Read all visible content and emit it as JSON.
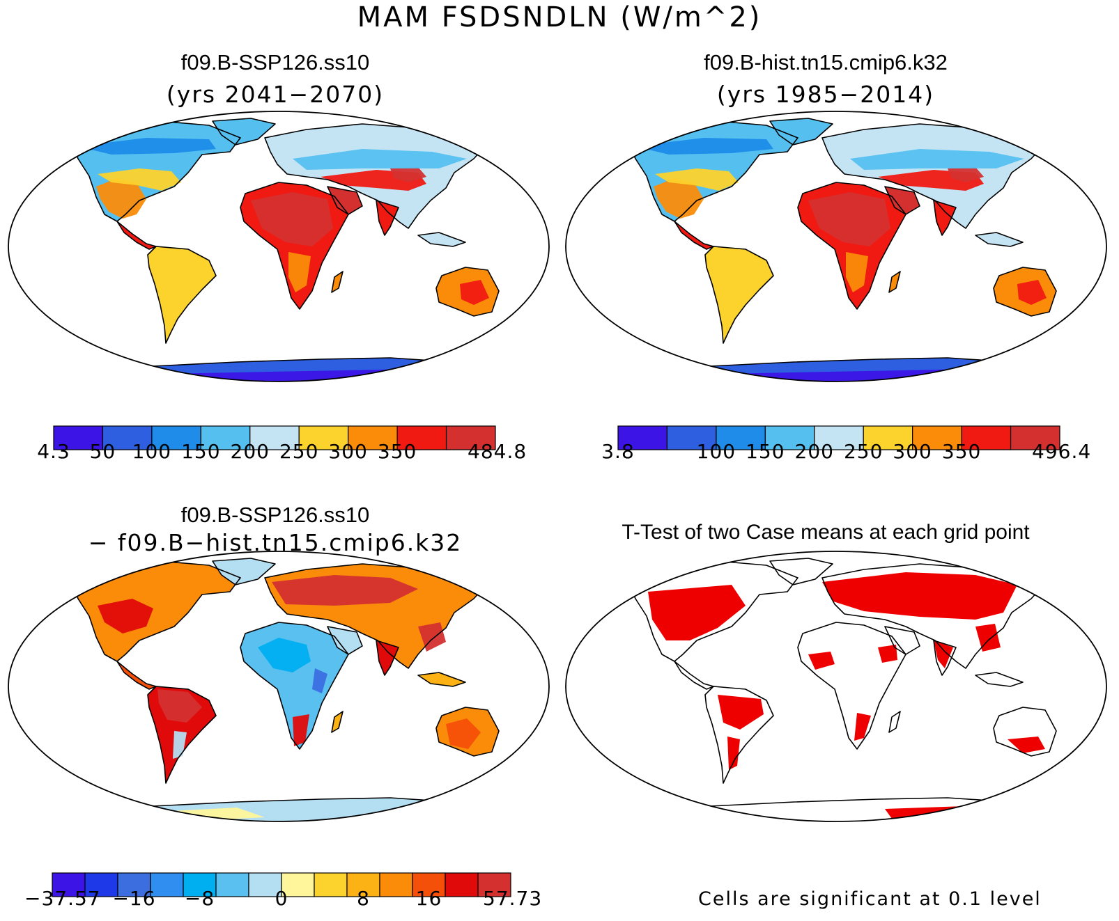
{
  "figure": {
    "title": "MAM FSDSNDLN (W/m^2)"
  },
  "panels": {
    "case1": {
      "title": "f09.B-SSP126.ss10",
      "subtitle": "(yrs 2041−2070)",
      "colorbar": {
        "colors": [
          "#3d14e6",
          "#2d5fe0",
          "#1e8ce8",
          "#55c0f0",
          "#c4e4f4",
          "#fcd22c",
          "#fa8c0a",
          "#f01a12",
          "#d43030"
        ],
        "labels": [
          "4.3",
          "50",
          "100",
          "150",
          "200",
          "250",
          "300",
          "350",
          "484.8"
        ]
      }
    },
    "case2": {
      "title": "f09.B-hist.tn15.cmip6.k32",
      "subtitle": "(yrs 1985−2014)",
      "colorbar": {
        "colors": [
          "#3d14e6",
          "#2d5fe0",
          "#1e8ce8",
          "#55c0f0",
          "#c4e4f4",
          "#fcd22c",
          "#fa8c0a",
          "#f01a12",
          "#d43030"
        ],
        "labels": [
          "3.8",
          "100",
          "150",
          "200",
          "250",
          "300",
          "350",
          "496.4"
        ]
      }
    },
    "diff": {
      "title": "f09.B-SSP126.ss10",
      "subtitle": "− f09.B−hist.tn15.cmip6.k32",
      "colorbar": {
        "colors": [
          "#3d14e6",
          "#1e3ae8",
          "#3c6ee0",
          "#2f8ef0",
          "#00aff0",
          "#5ac0f0",
          "#b4def2",
          "#fff59a",
          "#fcd22c",
          "#fcb214",
          "#fa8c0a",
          "#f5500a",
          "#e00a0a",
          "#d43030"
        ],
        "labels": [
          "−37.57",
          "−16",
          "−8",
          "0",
          "8",
          "16",
          "57.73"
        ]
      }
    },
    "ttest": {
      "title": "T-Test of two Case means at each grid point",
      "note": "Cells are significant at 0.1 level",
      "significant_color": "#ee0000"
    }
  }
}
